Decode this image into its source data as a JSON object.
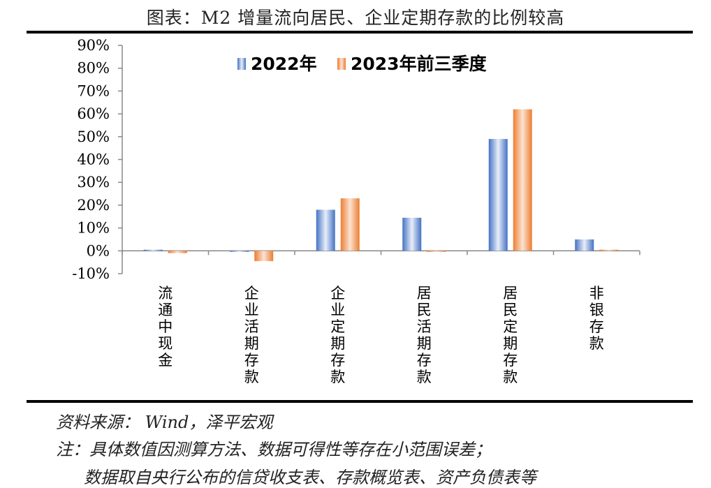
{
  "header": {
    "title": "图表：M2 增量流向居民、企业定期存款的比例较高"
  },
  "footer": {
    "source": "资料来源：  Wind，泽平宏观",
    "note_line1": "注：具体数值因测算方法、数据可得性等存在小范围误差；",
    "note_line2": "数据取自央行公布的信贷收支表、存款概览表、资产负债表等"
  },
  "colors": {
    "series_2022": "#4472C4",
    "series_2023": "#ED7D31",
    "axis": "#888888"
  },
  "chart_data": {
    "type": "bar",
    "categories": [
      "流通中现金",
      "企业活期存款",
      "企业定期存款",
      "居民活期存款",
      "居民定期存款",
      "非银存款"
    ],
    "series": [
      {
        "name": "2022年",
        "values": [
          0.5,
          0.0,
          18.0,
          14.5,
          49.0,
          5.0
        ]
      },
      {
        "name": "2023年前三季度",
        "values": [
          -1.0,
          -4.5,
          23.0,
          0.0,
          62.0,
          0.5
        ]
      }
    ],
    "ylim": [
      -10,
      90
    ],
    "yticks": [
      "-10%",
      "0%",
      "10%",
      "20%",
      "30%",
      "40%",
      "50%",
      "60%",
      "70%",
      "80%",
      "90%"
    ],
    "legend_position": "top",
    "grid": false
  }
}
